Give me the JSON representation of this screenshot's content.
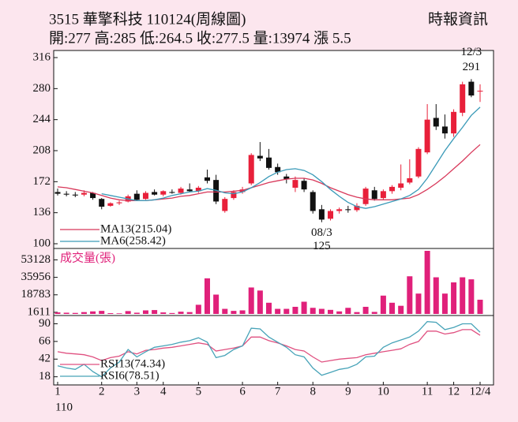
{
  "header": {
    "title": "3515  華擎科技 110124(周線圖)",
    "quote": "開:277 高:285 低:264.5 收:277.5 量:13974 漲 5.5",
    "source": "時報資訊"
  },
  "chart_data": [
    {
      "type": "candlestick",
      "open": [
        160,
        158,
        157,
        157,
        159,
        152,
        144,
        147,
        149,
        158,
        152,
        160,
        157,
        160,
        159,
        163,
        161,
        177,
        174,
        138,
        153,
        160,
        170,
        202,
        200,
        189,
        178,
        165,
        173,
        160,
        140,
        129,
        138,
        140,
        139,
        146,
        162,
        153,
        161,
        165,
        171,
        178,
        206,
        246,
        236,
        228,
        252,
        288,
        277
      ],
      "high": [
        164,
        161,
        160,
        162,
        160,
        153,
        148,
        150,
        157,
        162,
        161,
        163,
        162,
        163,
        166,
        170,
        167,
        186,
        180,
        154,
        162,
        166,
        205,
        218,
        210,
        193,
        181,
        178,
        176,
        162,
        145,
        140,
        142,
        144,
        147,
        166,
        166,
        163,
        168,
        192,
        198,
        212,
        262,
        262,
        250,
        256,
        288,
        291,
        285
      ],
      "low": [
        156,
        155,
        154,
        155,
        151,
        140,
        143,
        145,
        148,
        150,
        151,
        156,
        155,
        158,
        157,
        160,
        159,
        170,
        146,
        136,
        151,
        158,
        168,
        196,
        186,
        180,
        170,
        160,
        160,
        135,
        125,
        127,
        135,
        136,
        137,
        144,
        150,
        151,
        158,
        162,
        169,
        176,
        204,
        232,
        222,
        224,
        248,
        270,
        264.5
      ],
      "close": [
        158,
        157,
        156,
        159,
        153,
        143,
        147,
        148,
        155,
        151,
        159,
        157,
        161,
        159,
        164,
        161,
        165,
        173,
        149,
        152,
        160,
        163,
        203,
        199,
        188,
        183,
        175,
        174,
        163,
        138,
        128,
        138,
        140,
        139,
        144,
        164,
        152,
        161,
        166,
        170,
        176,
        210,
        244,
        236,
        228,
        253,
        285,
        272,
        277.5
      ],
      "up_color": "#e8203a",
      "down_color": "#111111",
      "lines": [
        {
          "name": "MA13(215.04)",
          "color": "#d8385a",
          "values": [
            166,
            165,
            163,
            161,
            159,
            156,
            153,
            151,
            150,
            150,
            150,
            151,
            152,
            153,
            155,
            156,
            158,
            160,
            160,
            160,
            161,
            162,
            165,
            168,
            171,
            173,
            175,
            176,
            176,
            174,
            170,
            165,
            161,
            157,
            154,
            152,
            151,
            151,
            151,
            152,
            153,
            157,
            163,
            170,
            178,
            187,
            196,
            206,
            215.04
          ]
        },
        {
          "name": "MA6(258.42)",
          "color": "#3a9ab8",
          "values": [
            null,
            null,
            null,
            null,
            null,
            158,
            156,
            154,
            152,
            150,
            150,
            151,
            153,
            156,
            158,
            160,
            161,
            164,
            162,
            159,
            158,
            160,
            165,
            171,
            178,
            183,
            186,
            187,
            185,
            180,
            172,
            163,
            155,
            148,
            143,
            141,
            143,
            146,
            149,
            152,
            156,
            163,
            176,
            192,
            208,
            222,
            235,
            249,
            258.42
          ]
        }
      ],
      "ylim": [
        100,
        316
      ],
      "yticks": [
        100,
        136,
        172,
        208,
        244,
        280,
        316
      ],
      "annotations": [
        {
          "label": "12/3",
          "value": 291
        },
        {
          "label": "08/3",
          "value": 125
        }
      ]
    },
    {
      "type": "bar",
      "title": "成交量(張)",
      "values": [
        1500,
        1200,
        1000,
        1800,
        2500,
        3000,
        800,
        600,
        2800,
        1200,
        3500,
        3800,
        1500,
        900,
        2200,
        1800,
        9000,
        35000,
        19000,
        5000,
        3000,
        3500,
        26000,
        23000,
        11000,
        5000,
        5000,
        7000,
        12000,
        6000,
        5000,
        4000,
        2500,
        6000,
        1800,
        7000,
        2000,
        18000,
        11000,
        8000,
        37000,
        20000,
        62000,
        36000,
        20000,
        31000,
        36000,
        34000,
        13974
      ],
      "color": "#e0207a",
      "ylim": [
        0,
        62000
      ],
      "yticks": [
        1611,
        18783,
        35956,
        53128
      ]
    },
    {
      "type": "line",
      "categories": [
        "1",
        null,
        null,
        null,
        null,
        "2",
        null,
        null,
        null,
        "3",
        null,
        null,
        "4",
        null,
        null,
        null,
        "5",
        null,
        null,
        null,
        null,
        "6",
        null,
        null,
        null,
        "7",
        null,
        null,
        null,
        "8",
        null,
        null,
        null,
        "9",
        null,
        null,
        null,
        "10",
        null,
        null,
        null,
        null,
        "11",
        null,
        null,
        "12",
        null,
        null,
        "12/4"
      ],
      "x_sublabel": "110",
      "series": [
        {
          "name": "RSI13(74.34)",
          "color": "#e05080",
          "values": [
            52,
            50,
            49,
            48,
            45,
            40,
            44,
            46,
            52,
            49,
            54,
            55,
            57,
            58,
            60,
            62,
            64,
            62,
            53,
            55,
            57,
            60,
            72,
            72,
            67,
            64,
            60,
            55,
            53,
            45,
            38,
            40,
            42,
            43,
            44,
            48,
            50,
            52,
            54,
            56,
            62,
            66,
            80,
            80,
            76,
            78,
            82,
            82,
            74.34
          ]
        },
        {
          "name": "RSI6(78.51)",
          "color": "#47a3b8",
          "values": [
            33,
            30,
            28,
            35,
            25,
            18,
            30,
            38,
            55,
            45,
            52,
            58,
            60,
            62,
            65,
            67,
            71,
            65,
            44,
            47,
            55,
            60,
            84,
            83,
            72,
            65,
            58,
            48,
            45,
            30,
            20,
            24,
            28,
            30,
            35,
            45,
            46,
            58,
            64,
            68,
            72,
            80,
            93,
            92,
            82,
            85,
            90,
            90,
            78.51
          ]
        }
      ],
      "ylim": [
        8,
        98
      ],
      "yticks": [
        18,
        42,
        66,
        90
      ]
    }
  ]
}
